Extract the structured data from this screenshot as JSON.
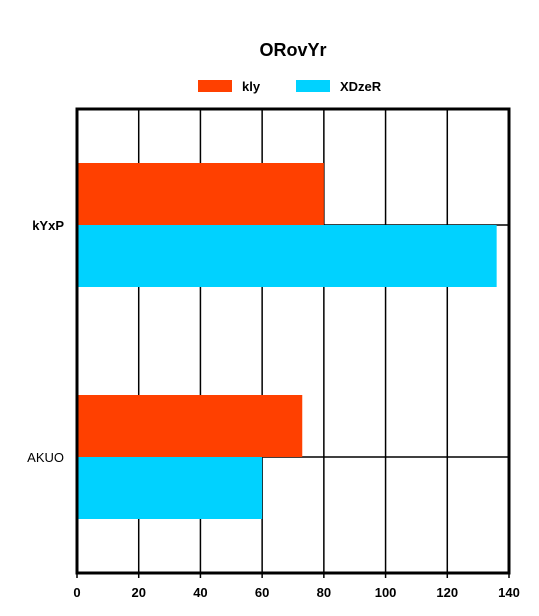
{
  "chart_data": {
    "type": "bar",
    "orientation": "horizontal",
    "title": "ORovYr",
    "categories": [
      "kYxP",
      "AKUO"
    ],
    "category_label_styles": [
      "bold",
      "normal"
    ],
    "series": [
      {
        "name": "kly",
        "color": "#ff4000",
        "values": [
          80,
          73
        ]
      },
      {
        "name": "XDzeR",
        "color": "#00d2ff",
        "values": [
          136,
          60
        ]
      }
    ],
    "xlim": [
      0,
      140
    ],
    "xticks": [
      0,
      20,
      40,
      60,
      80,
      100,
      120,
      140
    ],
    "xlabel": "",
    "ylabel": "",
    "grid": true,
    "legend_position": "top-center"
  }
}
